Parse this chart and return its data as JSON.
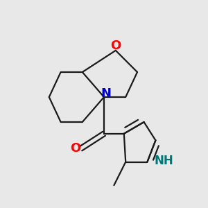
{
  "background_color": "#e8e8e8",
  "bond_color": "#1a1a1a",
  "O_color": "#ff0000",
  "N_color": "#0000cc",
  "NH_color": "#007777",
  "line_width": 1.6,
  "font_size": 13,
  "fig_width": 3.0,
  "fig_height": 3.0,
  "dpi": 100,
  "xlim": [
    0,
    300
  ],
  "ylim": [
    0,
    300
  ],
  "origin_x": 150,
  "origin_y": 160,
  "scale": 48
}
